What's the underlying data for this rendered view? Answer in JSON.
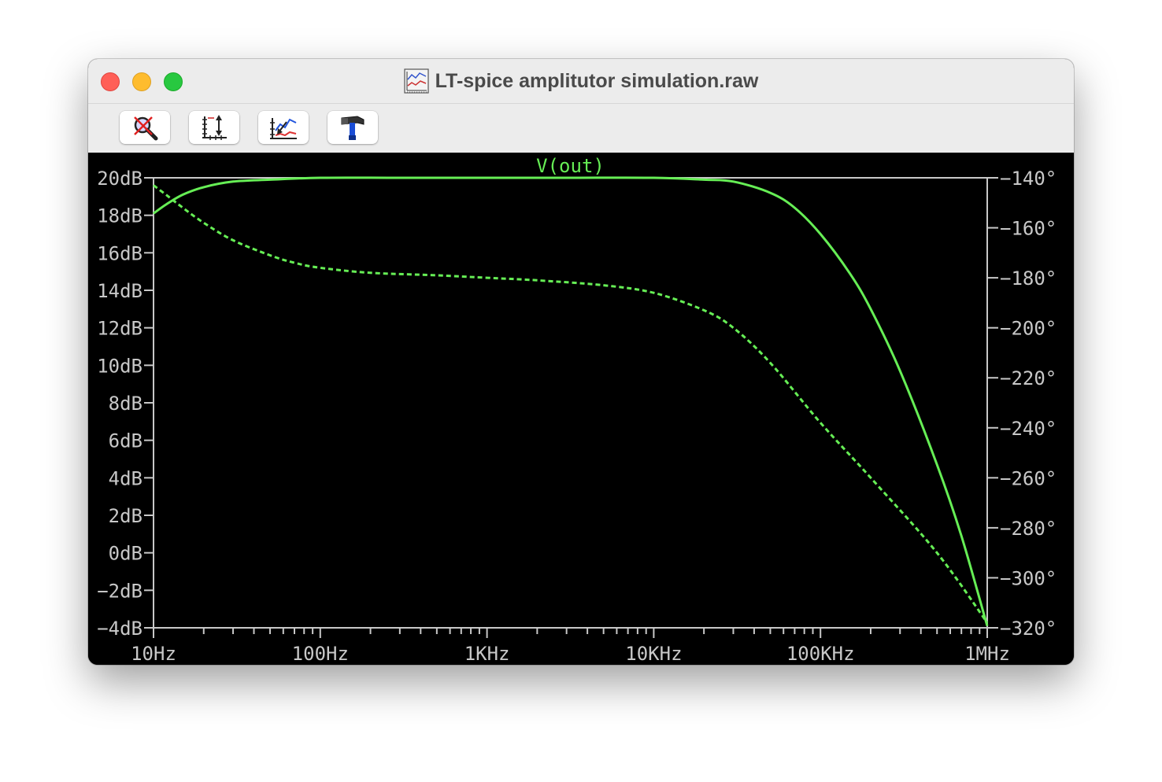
{
  "window": {
    "title": "LT-spice amplitutor simulation.raw",
    "title_icon": "waveform-plot-icon"
  },
  "toolbar": {
    "buttons": [
      {
        "name": "autorange-button",
        "icon": "magnifier-crossed-icon"
      },
      {
        "name": "zoom-extents-button",
        "icon": "axis-arrows-icon"
      },
      {
        "name": "trace-pick-button",
        "icon": "trace-cursor-icon"
      },
      {
        "name": "settings-button",
        "icon": "hammer-icon"
      }
    ]
  },
  "colors": {
    "trace": "#66ee55",
    "axis": "#c8c8c8",
    "background": "#000000"
  },
  "chart_data": {
    "type": "line",
    "title": "V(out)",
    "xscale": "log",
    "x_ticks": [
      "10Hz",
      "100Hz",
      "1KHz",
      "10KHz",
      "100KHz",
      "1MHz"
    ],
    "y_left_ticks": [
      "20dB",
      "18dB",
      "16dB",
      "14dB",
      "12dB",
      "10dB",
      "8dB",
      "6dB",
      "4dB",
      "2dB",
      "0dB",
      "-2dB",
      "-4dB"
    ],
    "y_right_ticks": [
      "-140°",
      "-160°",
      "-180°",
      "-200°",
      "-220°",
      "-240°",
      "-260°",
      "-280°",
      "-300°",
      "-320°"
    ],
    "xlim": [
      10,
      1000000
    ],
    "ylim_left": [
      -4,
      20
    ],
    "ylim_right": [
      -320,
      -140
    ],
    "grid": false,
    "series": [
      {
        "axis": "left",
        "style": "solid",
        "x": [
          10,
          12,
          15,
          20,
          30,
          50,
          100,
          300,
          1000,
          3000,
          10000,
          20000,
          30000,
          50000,
          70000,
          100000,
          150000,
          200000,
          300000,
          500000,
          700000,
          1000000
        ],
        "y": [
          18.1,
          18.6,
          19.1,
          19.5,
          19.8,
          19.9,
          20.0,
          20.0,
          20.0,
          20.0,
          20.0,
          19.9,
          19.8,
          19.2,
          18.4,
          17.0,
          14.9,
          13.0,
          9.7,
          4.7,
          0.9,
          -3.9
        ]
      },
      {
        "axis": "right",
        "style": "dashed",
        "x": [
          10,
          12,
          15,
          20,
          30,
          50,
          70,
          100,
          200,
          500,
          1000,
          2000,
          5000,
          10000,
          20000,
          30000,
          50000,
          100000,
          200000,
          500000,
          1000000
        ],
        "y": [
          -143,
          -147,
          -152,
          -158,
          -165,
          -171,
          -174,
          -176,
          -178,
          -179,
          -180,
          -181,
          -183,
          -186,
          -193,
          -200,
          -214,
          -238,
          -260,
          -290,
          -318
        ]
      }
    ]
  }
}
